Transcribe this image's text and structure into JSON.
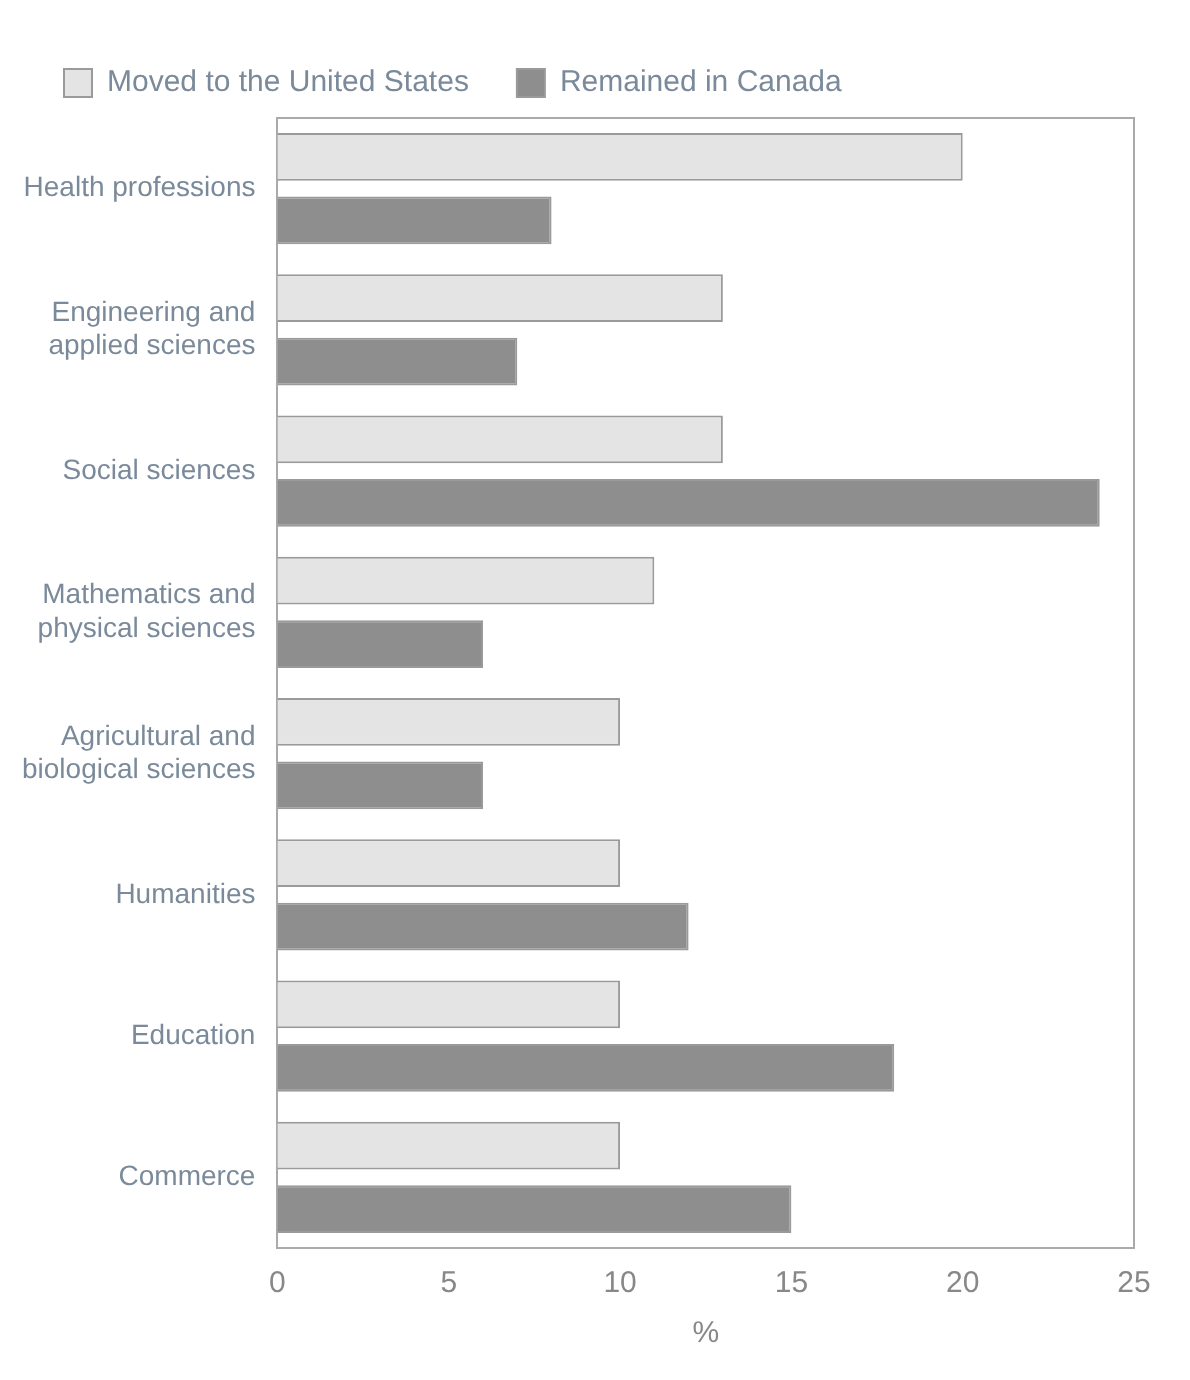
{
  "chart_data": {
    "type": "bar",
    "orientation": "horizontal",
    "xlabel": "%",
    "categories": [
      "Health professions",
      "Engineering and applied sciences",
      "Social sciences",
      "Mathematics and physical sciences",
      "Agricultural and biological sciences",
      "Humanities",
      "Education",
      "Commerce"
    ],
    "series": [
      {
        "name": "Moved to the United States",
        "color": "#e4e4e4",
        "values": [
          20,
          13,
          13,
          11,
          10,
          10,
          10,
          10
        ]
      },
      {
        "name": "Remained in Canada",
        "color": "#8e8e8e",
        "values": [
          8,
          7,
          24,
          6,
          6,
          12,
          18,
          15
        ]
      }
    ],
    "xlim": [
      0,
      25
    ],
    "xticks": [
      0,
      5,
      10,
      15,
      20,
      25
    ],
    "grid": false,
    "legend": "top left"
  }
}
